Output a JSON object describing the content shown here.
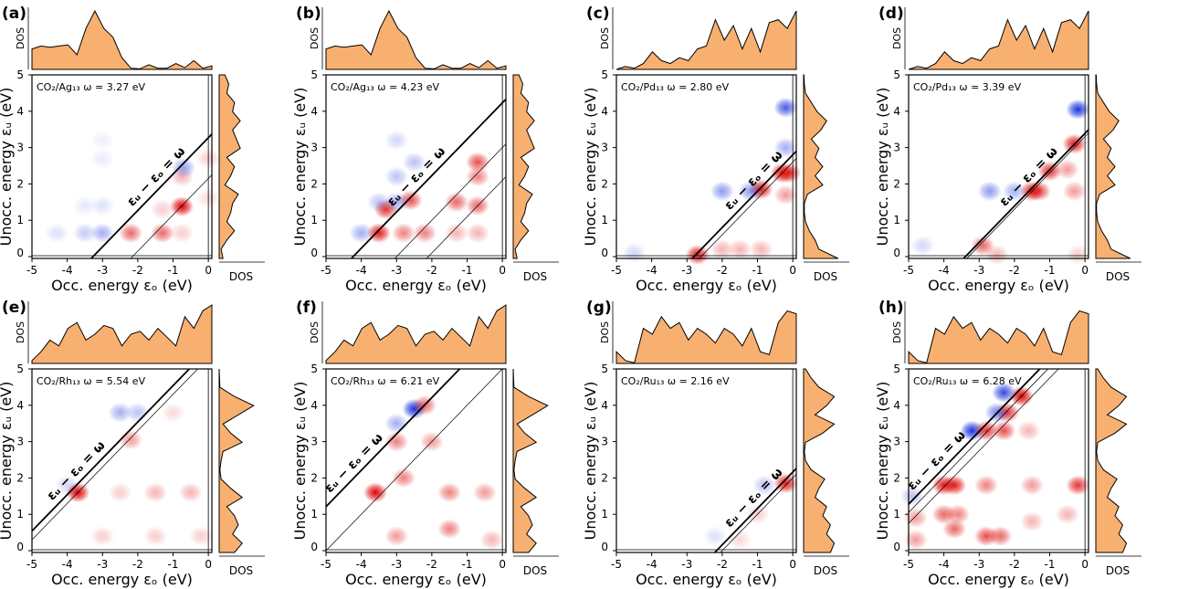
{
  "chart_data": [
    {
      "panel": "(a)",
      "type": "heatmap",
      "title": "CO₂/Ag₁₃  ω = 3.27 eV",
      "omega": 3.27,
      "thin_lines": [
        2.15
      ],
      "spots": [
        [
          -0.75,
          1.38,
          "r",
          1
        ],
        [
          -2.2,
          0.65,
          "r",
          0.6
        ],
        [
          -1.3,
          0.65,
          "r",
          0.6
        ],
        [
          -0.75,
          2.2,
          "r",
          0.3
        ],
        [
          -0.75,
          0.65,
          "r",
          0.2
        ],
        [
          -1.3,
          1.3,
          "r",
          0.2
        ],
        [
          0,
          2.7,
          "r",
          0.2
        ],
        [
          0,
          1.6,
          "r",
          0.15
        ],
        [
          -0.7,
          2.45,
          "b",
          0.45
        ],
        [
          -3,
          0.65,
          "b",
          0.4
        ],
        [
          -3.5,
          0.65,
          "b",
          0.25
        ],
        [
          -4.3,
          0.65,
          "b",
          0.15
        ],
        [
          -3,
          1.4,
          "b",
          0.15
        ],
        [
          -3.5,
          1.4,
          "b",
          0.12
        ],
        [
          -3,
          2.7,
          "b",
          0.1
        ],
        [
          -3,
          3.2,
          "b",
          0.08
        ]
      ],
      "dos_occ": [
        0.35,
        0.4,
        0.38,
        0.4,
        0.42,
        0.25,
        0.7,
        1.0,
        0.7,
        0.55,
        0.2,
        0.02,
        0.01,
        0.08,
        0.02,
        0.02,
        0.1,
        0.03,
        0.15,
        0.02,
        0.06
      ],
      "dos_unocc": [
        0.1,
        0.05,
        0.2,
        0.4,
        0.2,
        0.3,
        0.35,
        0.5,
        0.15,
        0.3,
        0.4,
        0.2,
        0.55,
        0.45,
        0.35,
        0.55,
        0.35,
        0.4,
        0.2,
        0.25,
        0.15
      ]
    },
    {
      "panel": "(b)",
      "type": "heatmap",
      "title": "CO₂/Ag₁₃ ω = 4.23 eV",
      "omega": 4.23,
      "thin_lines": [
        3.0,
        2.1
      ],
      "spots": [
        [
          -3.5,
          0.65,
          "r",
          0.9
        ],
        [
          -3.3,
          1.3,
          "r",
          0.8
        ],
        [
          -2.6,
          1.55,
          "r",
          0.7
        ],
        [
          -1.3,
          1.5,
          "r",
          0.6
        ],
        [
          -0.7,
          2.6,
          "r",
          0.7
        ],
        [
          -0.7,
          2.2,
          "r",
          0.5
        ],
        [
          -0.7,
          1.4,
          "r",
          0.6
        ],
        [
          -2.8,
          0.65,
          "r",
          0.5
        ],
        [
          -2.2,
          0.65,
          "r",
          0.5
        ],
        [
          -1.3,
          0.65,
          "r",
          0.3
        ],
        [
          -0.7,
          0.65,
          "r",
          0.3
        ],
        [
          -2.5,
          2.6,
          "b",
          0.3
        ],
        [
          -3,
          1.5,
          "b",
          0.4
        ],
        [
          -3.5,
          1.5,
          "b",
          0.3
        ],
        [
          -4,
          0.65,
          "b",
          0.4
        ],
        [
          -3,
          2.2,
          "b",
          0.3
        ],
        [
          -3,
          3.2,
          "b",
          0.2
        ]
      ],
      "dos_occ": [
        0.35,
        0.4,
        0.38,
        0.4,
        0.42,
        0.25,
        0.7,
        1.0,
        0.7,
        0.55,
        0.2,
        0.02,
        0.01,
        0.08,
        0.02,
        0.02,
        0.1,
        0.03,
        0.15,
        0.02,
        0.06
      ],
      "dos_unocc": [
        0.1,
        0.05,
        0.2,
        0.4,
        0.2,
        0.3,
        0.35,
        0.5,
        0.15,
        0.3,
        0.4,
        0.2,
        0.55,
        0.45,
        0.35,
        0.55,
        0.35,
        0.4,
        0.2,
        0.25,
        0.15
      ]
    },
    {
      "panel": "(c)",
      "type": "heatmap",
      "title": "CO₂/Pd₁₃ ω = 2.80 eV",
      "omega": 2.8,
      "thin_lines": [
        2.6
      ],
      "spots": [
        [
          -2.7,
          0.05,
          "r",
          0.9
        ],
        [
          -0.3,
          2.3,
          "r",
          0.9
        ],
        [
          -0.1,
          2.3,
          "r",
          0.8
        ],
        [
          -0.9,
          1.85,
          "r",
          0.9
        ],
        [
          -0.9,
          0.2,
          "r",
          0.3
        ],
        [
          -1.5,
          0.2,
          "r",
          0.3
        ],
        [
          -2,
          0.2,
          "r",
          0.3
        ],
        [
          -0.2,
          1.7,
          "r",
          0.4
        ],
        [
          -0.2,
          4.1,
          "b",
          0.8
        ],
        [
          -0.2,
          3.0,
          "b",
          0.4
        ],
        [
          -1.2,
          1.8,
          "b",
          0.5
        ],
        [
          -2,
          1.8,
          "b",
          0.5
        ],
        [
          -4.5,
          0.1,
          "b",
          0.2
        ]
      ],
      "dos_occ": [
        0,
        0.05,
        0.02,
        0.1,
        0.3,
        0.15,
        0.1,
        0.2,
        0.15,
        0.35,
        0.4,
        0.85,
        0.5,
        0.75,
        0.35,
        0.7,
        0.3,
        0.8,
        0.85,
        0.7,
        1.0
      ],
      "dos_unocc": [
        0.9,
        0.4,
        0.3,
        0.15,
        0.05,
        0.02,
        0.02,
        0.1,
        0.5,
        0.3,
        0.5,
        0.3,
        0.4,
        0.2,
        0.45,
        0.6,
        0.35,
        0.2,
        0.05,
        0.02,
        0.01
      ]
    },
    {
      "panel": "(d)",
      "type": "heatmap",
      "title": "CO₂/Pd₁₃ ω = 3.39 eV",
      "omega": 3.39,
      "thin_lines": [
        3.3
      ],
      "spots": [
        [
          -0.2,
          4.05,
          "b",
          1
        ],
        [
          -0.3,
          3.1,
          "r",
          0.9
        ],
        [
          -1.0,
          2.35,
          "r",
          0.8
        ],
        [
          -1.5,
          1.8,
          "r",
          0.9
        ],
        [
          -1.3,
          1.8,
          "r",
          0.7
        ],
        [
          -0.5,
          2.4,
          "r",
          0.4
        ],
        [
          -0.3,
          1.8,
          "r",
          0.4
        ],
        [
          -2.9,
          0.3,
          "r",
          0.6
        ],
        [
          -2.7,
          1.8,
          "b",
          0.5
        ],
        [
          -2,
          1.8,
          "b",
          0.4
        ],
        [
          -2.5,
          0.05,
          "r",
          0.3
        ],
        [
          -0.2,
          0.05,
          "r",
          0.2
        ],
        [
          -4.6,
          0.3,
          "b",
          0.2
        ]
      ],
      "dos_occ": [
        0,
        0.05,
        0.02,
        0.1,
        0.3,
        0.15,
        0.1,
        0.2,
        0.15,
        0.35,
        0.4,
        0.85,
        0.5,
        0.75,
        0.35,
        0.7,
        0.3,
        0.8,
        0.85,
        0.7,
        1.0
      ],
      "dos_unocc": [
        0.9,
        0.4,
        0.3,
        0.15,
        0.05,
        0.02,
        0.02,
        0.1,
        0.5,
        0.3,
        0.5,
        0.3,
        0.4,
        0.2,
        0.45,
        0.6,
        0.35,
        0.2,
        0.05,
        0.02,
        0.01
      ]
    },
    {
      "panel": "(e)",
      "type": "heatmap",
      "title": "CO₂/Rh₁₃  ω = 5.54 eV",
      "omega": 5.54,
      "thin_lines": [
        5.3
      ],
      "spots": [
        [
          -3.7,
          1.6,
          "r",
          1
        ],
        [
          -2.2,
          3.05,
          "r",
          0.4
        ],
        [
          -2.5,
          3.8,
          "b",
          0.4
        ],
        [
          -2,
          3.8,
          "b",
          0.3
        ],
        [
          -1.5,
          1.6,
          "r",
          0.3
        ],
        [
          -0.5,
          1.6,
          "r",
          0.3
        ],
        [
          -3.0,
          0.4,
          "r",
          0.2
        ],
        [
          -1.5,
          0.4,
          "r",
          0.2
        ],
        [
          -0.2,
          0.4,
          "r",
          0.2
        ],
        [
          -4,
          1.8,
          "b",
          0.2
        ],
        [
          -1,
          3.8,
          "r",
          0.15
        ],
        [
          -2.5,
          1.6,
          "r",
          0.2
        ]
      ],
      "dos_occ": [
        0.05,
        0.2,
        0.4,
        0.3,
        0.6,
        0.7,
        0.4,
        0.5,
        0.65,
        0.6,
        0.3,
        0.5,
        0.55,
        0.4,
        0.6,
        0.45,
        0.3,
        0.8,
        0.6,
        0.9,
        1.0
      ],
      "dos_unocc": [
        0.4,
        0.6,
        0.35,
        0.5,
        0.4,
        0.2,
        0.6,
        0.3,
        0.05,
        0.02,
        0.05,
        0.1,
        0.6,
        0.3,
        0.1,
        0.5,
        0.9,
        0.4,
        0.02,
        0.01,
        0
      ]
    },
    {
      "panel": "(f)",
      "type": "heatmap",
      "title": "CO₂/Rh₁₃ ω = 6.21 eV",
      "omega": 6.21,
      "thin_lines": [
        5.0
      ],
      "spots": [
        [
          -2.5,
          3.9,
          "b",
          1
        ],
        [
          -2.2,
          4.0,
          "r",
          0.6
        ],
        [
          -3.6,
          1.6,
          "r",
          1
        ],
        [
          -3,
          3.0,
          "r",
          0.5
        ],
        [
          -2,
          3.0,
          "r",
          0.4
        ],
        [
          -2.8,
          2.0,
          "r",
          0.5
        ],
        [
          -1.5,
          1.6,
          "r",
          0.5
        ],
        [
          -0.5,
          1.6,
          "r",
          0.4
        ],
        [
          -1.5,
          0.6,
          "r",
          0.5
        ],
        [
          -3,
          0.4,
          "r",
          0.4
        ],
        [
          -0.3,
          0.3,
          "r",
          0.3
        ],
        [
          -3,
          3.5,
          "b",
          0.4
        ]
      ],
      "dos_occ": [
        0.05,
        0.2,
        0.4,
        0.3,
        0.6,
        0.7,
        0.4,
        0.5,
        0.65,
        0.6,
        0.3,
        0.5,
        0.55,
        0.4,
        0.6,
        0.45,
        0.3,
        0.8,
        0.6,
        0.9,
        1.0
      ],
      "dos_unocc": [
        0.4,
        0.6,
        0.35,
        0.5,
        0.4,
        0.2,
        0.6,
        0.3,
        0.05,
        0.02,
        0.05,
        0.1,
        0.6,
        0.3,
        0.1,
        0.5,
        0.9,
        0.4,
        0.02,
        0.01,
        0
      ]
    },
    {
      "panel": "(g)",
      "type": "heatmap",
      "title": "CO₂/Ru₁₃ ω = 2.16 eV",
      "omega": 2.16,
      "thin_lines": [
        2.0
      ],
      "spots": [
        [
          -0.2,
          1.85,
          "r",
          0.9
        ],
        [
          -0.8,
          1.8,
          "b",
          0.3
        ],
        [
          -1,
          1,
          "r",
          0.2
        ],
        [
          -1.5,
          0.3,
          "r",
          0.15
        ],
        [
          -2.2,
          0.4,
          "b",
          0.15
        ]
      ],
      "dos_occ": [
        0.2,
        0.05,
        0.01,
        0.6,
        0.5,
        0.8,
        0.6,
        0.7,
        0.4,
        0.6,
        0.5,
        0.35,
        0.6,
        0.5,
        0.3,
        0.6,
        0.2,
        0.15,
        0.7,
        0.9,
        0.85
      ],
      "dos_unocc": [
        0.7,
        0.8,
        0.6,
        0.7,
        0.5,
        0.6,
        0.3,
        0.4,
        0.55,
        0.2,
        0.05,
        0.02,
        0.05,
        0.5,
        0.8,
        0.3,
        0.6,
        0.8,
        0.4,
        0.2,
        0.05
      ]
    },
    {
      "panel": "(h)",
      "type": "heatmap",
      "title": "CO₂/Ru₁₃ ω = 6.28 eV",
      "omega": 6.28,
      "thin_lines": [
        6.05,
        5.75
      ],
      "spots": [
        [
          -1.8,
          4.25,
          "r",
          1
        ],
        [
          -2.3,
          4.35,
          "b",
          0.9
        ],
        [
          -2.2,
          3.8,
          "r",
          0.8
        ],
        [
          -2.5,
          3.8,
          "b",
          0.6
        ],
        [
          -3.2,
          3.3,
          "b",
          1
        ],
        [
          -2.8,
          3.3,
          "r",
          0.8
        ],
        [
          -2.3,
          3.3,
          "r",
          0.7
        ],
        [
          -1.6,
          3.3,
          "r",
          0.3
        ],
        [
          -4,
          1.8,
          "r",
          0.9
        ],
        [
          -3.7,
          1.8,
          "r",
          0.9
        ],
        [
          -2.8,
          1.8,
          "r",
          0.5
        ],
        [
          -0.2,
          1.8,
          "r",
          0.8
        ],
        [
          -1.5,
          1.8,
          "r",
          0.4
        ],
        [
          -4,
          1.0,
          "r",
          0.6
        ],
        [
          -3.6,
          1.0,
          "r",
          0.5
        ],
        [
          -4.8,
          0.9,
          "r",
          0.4
        ],
        [
          -4.8,
          0.3,
          "r",
          0.4
        ],
        [
          -3.7,
          0.6,
          "r",
          0.6
        ],
        [
          -2.8,
          0.4,
          "r",
          0.7
        ],
        [
          -2.4,
          0.4,
          "r",
          0.6
        ],
        [
          -1.5,
          0.8,
          "r",
          0.3
        ],
        [
          -0.5,
          1.0,
          "r",
          0.3
        ],
        [
          -4.9,
          1.5,
          "b",
          0.3
        ]
      ],
      "dos_occ": [
        0.2,
        0.05,
        0.01,
        0.6,
        0.5,
        0.8,
        0.6,
        0.7,
        0.4,
        0.6,
        0.5,
        0.35,
        0.6,
        0.5,
        0.3,
        0.6,
        0.2,
        0.15,
        0.7,
        0.9,
        0.85
      ],
      "dos_unocc": [
        0.7,
        0.8,
        0.6,
        0.7,
        0.5,
        0.6,
        0.3,
        0.4,
        0.55,
        0.2,
        0.05,
        0.02,
        0.05,
        0.5,
        0.8,
        0.3,
        0.6,
        0.8,
        0.4,
        0.2,
        0.05
      ]
    }
  ],
  "common": {
    "xlabel": "Occ. energy εₒ (eV)",
    "ylabel": "Unocc. energy εᵤ (eV)",
    "dos_label": "DOS",
    "line_label": "εᵤ − εₒ = ω",
    "xticks": [
      -5,
      -4,
      -3,
      -2,
      -1,
      0
    ],
    "yticks": [
      0,
      1,
      2,
      3,
      4,
      5
    ],
    "xlim": [
      -5,
      0.1
    ],
    "ylim": [
      -0.05,
      5
    ],
    "colors": {
      "positive": "#dd0000",
      "negative": "#1a33dd",
      "dos_fill": "#f8b070"
    }
  }
}
